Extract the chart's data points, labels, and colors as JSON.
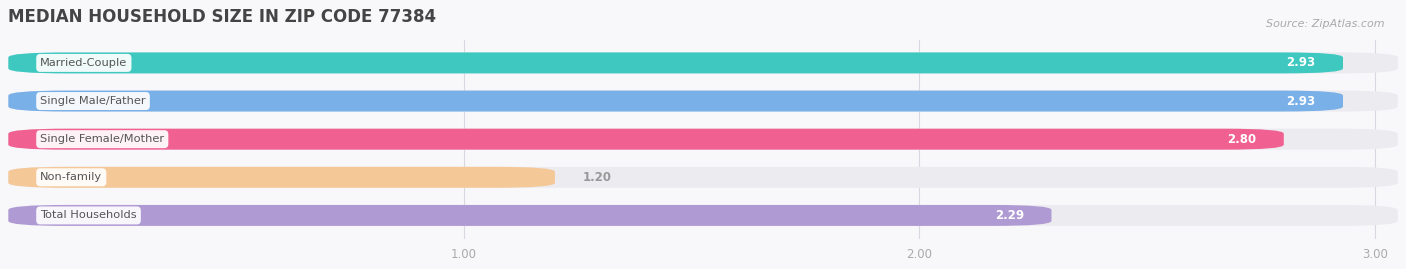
{
  "title": "MEDIAN HOUSEHOLD SIZE IN ZIP CODE 77384",
  "source": "Source: ZipAtlas.com",
  "categories": [
    "Married-Couple",
    "Single Male/Father",
    "Single Female/Mother",
    "Non-family",
    "Total Households"
  ],
  "values": [
    2.93,
    2.93,
    2.8,
    1.2,
    2.29
  ],
  "bar_colors": [
    "#3ec8c0",
    "#7ab0e8",
    "#f06090",
    "#f5c898",
    "#b09ad4"
  ],
  "value_inside_threshold": 1.8,
  "xlim_min": 0.0,
  "xlim_max": 3.05,
  "xticks": [
    1.0,
    2.0,
    3.0
  ],
  "title_fontsize": 12,
  "bar_height": 0.55,
  "bar_spacing": 1.0,
  "figsize": [
    14.06,
    2.69
  ],
  "dpi": 100,
  "background_color": "#f8f8fb",
  "track_color": "#ebebf0",
  "label_bg_color": "#ffffff",
  "label_text_color": "#555555",
  "value_inside_color": "#ffffff",
  "value_outside_color": "#999999",
  "grid_color": "#d8d8e0",
  "tick_color": "#aaaaaa",
  "title_color": "#444444",
  "source_color": "#aaaaaa"
}
